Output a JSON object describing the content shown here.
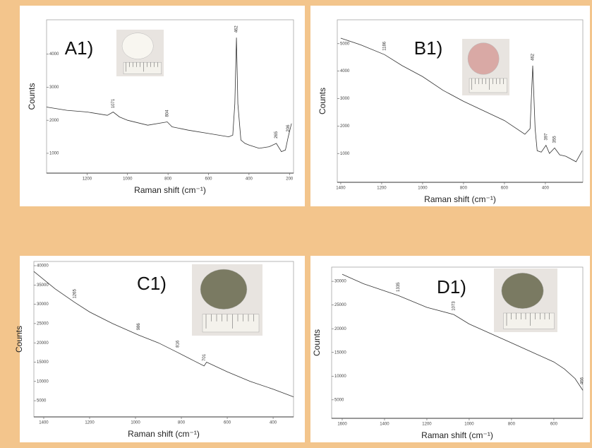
{
  "chart_data": [
    {
      "type": "line",
      "title": "A1)",
      "xlabel": "Raman shift (cm⁻¹)",
      "ylabel": "Counts",
      "color": "#333333",
      "xlim": [
        1400,
        180
      ],
      "ylim": [
        400,
        5040
      ],
      "xticks": [
        1200,
        1000,
        800,
        600,
        400,
        200
      ],
      "yticks": [
        1000,
        2000,
        3000,
        4000
      ],
      "x": [
        1400,
        1300,
        1200,
        1100,
        1071,
        1040,
        1000,
        900,
        804,
        780,
        700,
        600,
        500,
        480,
        470,
        462,
        455,
        440,
        420,
        400,
        350,
        300,
        265,
        240,
        220,
        206,
        190
      ],
      "values": [
        2400,
        2300,
        2250,
        2150,
        2250,
        2100,
        2000,
        1850,
        1950,
        1800,
        1700,
        1600,
        1500,
        1550,
        2500,
        4500,
        2500,
        1400,
        1300,
        1250,
        1150,
        1200,
        1300,
        1050,
        1100,
        1500,
        1900
      ],
      "annotations": [
        {
          "text": "1071",
          "x": 1071
        },
        {
          "text": "804",
          "x": 804
        },
        {
          "text": "462",
          "x": 462
        },
        {
          "text": "265",
          "x": 265
        },
        {
          "text": "206",
          "x": 206
        }
      ]
    },
    {
      "type": "line",
      "title": "B1)",
      "xlabel": "Raman shift (cm⁻¹)",
      "ylabel": "Counts",
      "color": "#333333",
      "xlim": [
        1417,
        217
      ],
      "ylim": [
        -50,
        5870
      ],
      "xticks": [
        1400,
        1200,
        1000,
        800,
        600,
        400
      ],
      "yticks": [
        1000,
        2000,
        3000,
        4000,
        5000
      ],
      "x": [
        1400,
        1300,
        1186,
        1100,
        1000,
        900,
        800,
        700,
        600,
        500,
        475,
        462,
        450,
        440,
        420,
        397,
        380,
        355,
        330,
        300,
        250,
        220
      ],
      "values": [
        5200,
        4950,
        4600,
        4200,
        3800,
        3300,
        2900,
        2550,
        2200,
        1700,
        1900,
        4200,
        1900,
        1100,
        1050,
        1300,
        1000,
        1200,
        950,
        900,
        700,
        1100
      ],
      "annotations": [
        {
          "text": "1186",
          "x": 1186
        },
        {
          "text": "462",
          "x": 462
        },
        {
          "text": "397",
          "x": 397
        },
        {
          "text": "355",
          "x": 355
        }
      ]
    },
    {
      "type": "line",
      "title": "C1)",
      "xlabel": "Raman shift (cm⁻¹)",
      "ylabel": "Counts",
      "color": "#333333",
      "xlim": [
        1443,
        311
      ],
      "ylim": [
        800,
        41100
      ],
      "xticks": [
        1400,
        1200,
        1000,
        800,
        600,
        400
      ],
      "yticks": [
        5000,
        10000,
        15000,
        20000,
        25000,
        30000,
        35000,
        40000
      ],
      "x": [
        1443,
        1350,
        1265,
        1200,
        1100,
        986,
        900,
        816,
        750,
        701,
        690,
        600,
        500,
        400,
        311
      ],
      "values": [
        38500,
        34000,
        30500,
        28000,
        25000,
        22000,
        20000,
        17500,
        15500,
        14000,
        15000,
        12500,
        10000,
        8000,
        6000
      ],
      "annotations": [
        {
          "text": "1265",
          "x": 1265
        },
        {
          "text": "986",
          "x": 986
        },
        {
          "text": "816",
          "x": 816
        },
        {
          "text": "701",
          "x": 701
        }
      ]
    },
    {
      "type": "line",
      "title": "D1)",
      "xlabel": "Raman shift (cm⁻¹)",
      "ylabel": "Counts",
      "color": "#333333",
      "xlim": [
        1650,
        463
      ],
      "ylim": [
        1100,
        33000
      ],
      "xticks": [
        1600,
        1400,
        1200,
        1000,
        800,
        600
      ],
      "yticks": [
        5000,
        10000,
        15000,
        20000,
        25000,
        30000
      ],
      "x": [
        1600,
        1500,
        1335,
        1200,
        1073,
        1000,
        900,
        800,
        700,
        600,
        550,
        500,
        463
      ],
      "values": [
        31500,
        29500,
        27000,
        24500,
        23000,
        21000,
        19000,
        17000,
        15000,
        13000,
        11500,
        9500,
        7000
      ],
      "annotations": [
        {
          "text": "1335",
          "x": 1335
        },
        {
          "text": "1073",
          "x": 1073
        },
        {
          "text": "466",
          "x": 466
        }
      ]
    }
  ]
}
